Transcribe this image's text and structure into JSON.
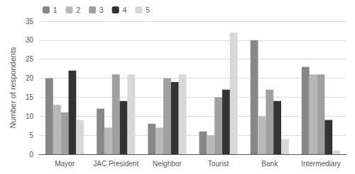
{
  "chart_data": {
    "type": "bar",
    "categories": [
      "Mayor",
      "JAC President",
      "Neighbor",
      "Tourist",
      "Bank",
      "Intermediary"
    ],
    "series": [
      {
        "name": "1",
        "color": "#878787",
        "values": [
          20,
          12,
          8,
          6,
          30,
          23
        ]
      },
      {
        "name": "2",
        "color": "#b8b8b8",
        "values": [
          13,
          7,
          7,
          5,
          10,
          21
        ]
      },
      {
        "name": "3",
        "color": "#a0a0a0",
        "values": [
          11,
          21,
          20,
          15,
          17,
          21
        ]
      },
      {
        "name": "4",
        "color": "#333333",
        "values": [
          22,
          14,
          19,
          17,
          14,
          9
        ]
      },
      {
        "name": "5",
        "color": "#d8d8d8",
        "values": [
          9,
          21,
          21,
          32,
          4,
          1
        ]
      }
    ],
    "ylabel": "Number of respondents",
    "ylim": [
      0,
      35
    ],
    "yticks": [
      0,
      5,
      10,
      15,
      20,
      25,
      30,
      35
    ],
    "grid": true,
    "legend": "upper left"
  }
}
